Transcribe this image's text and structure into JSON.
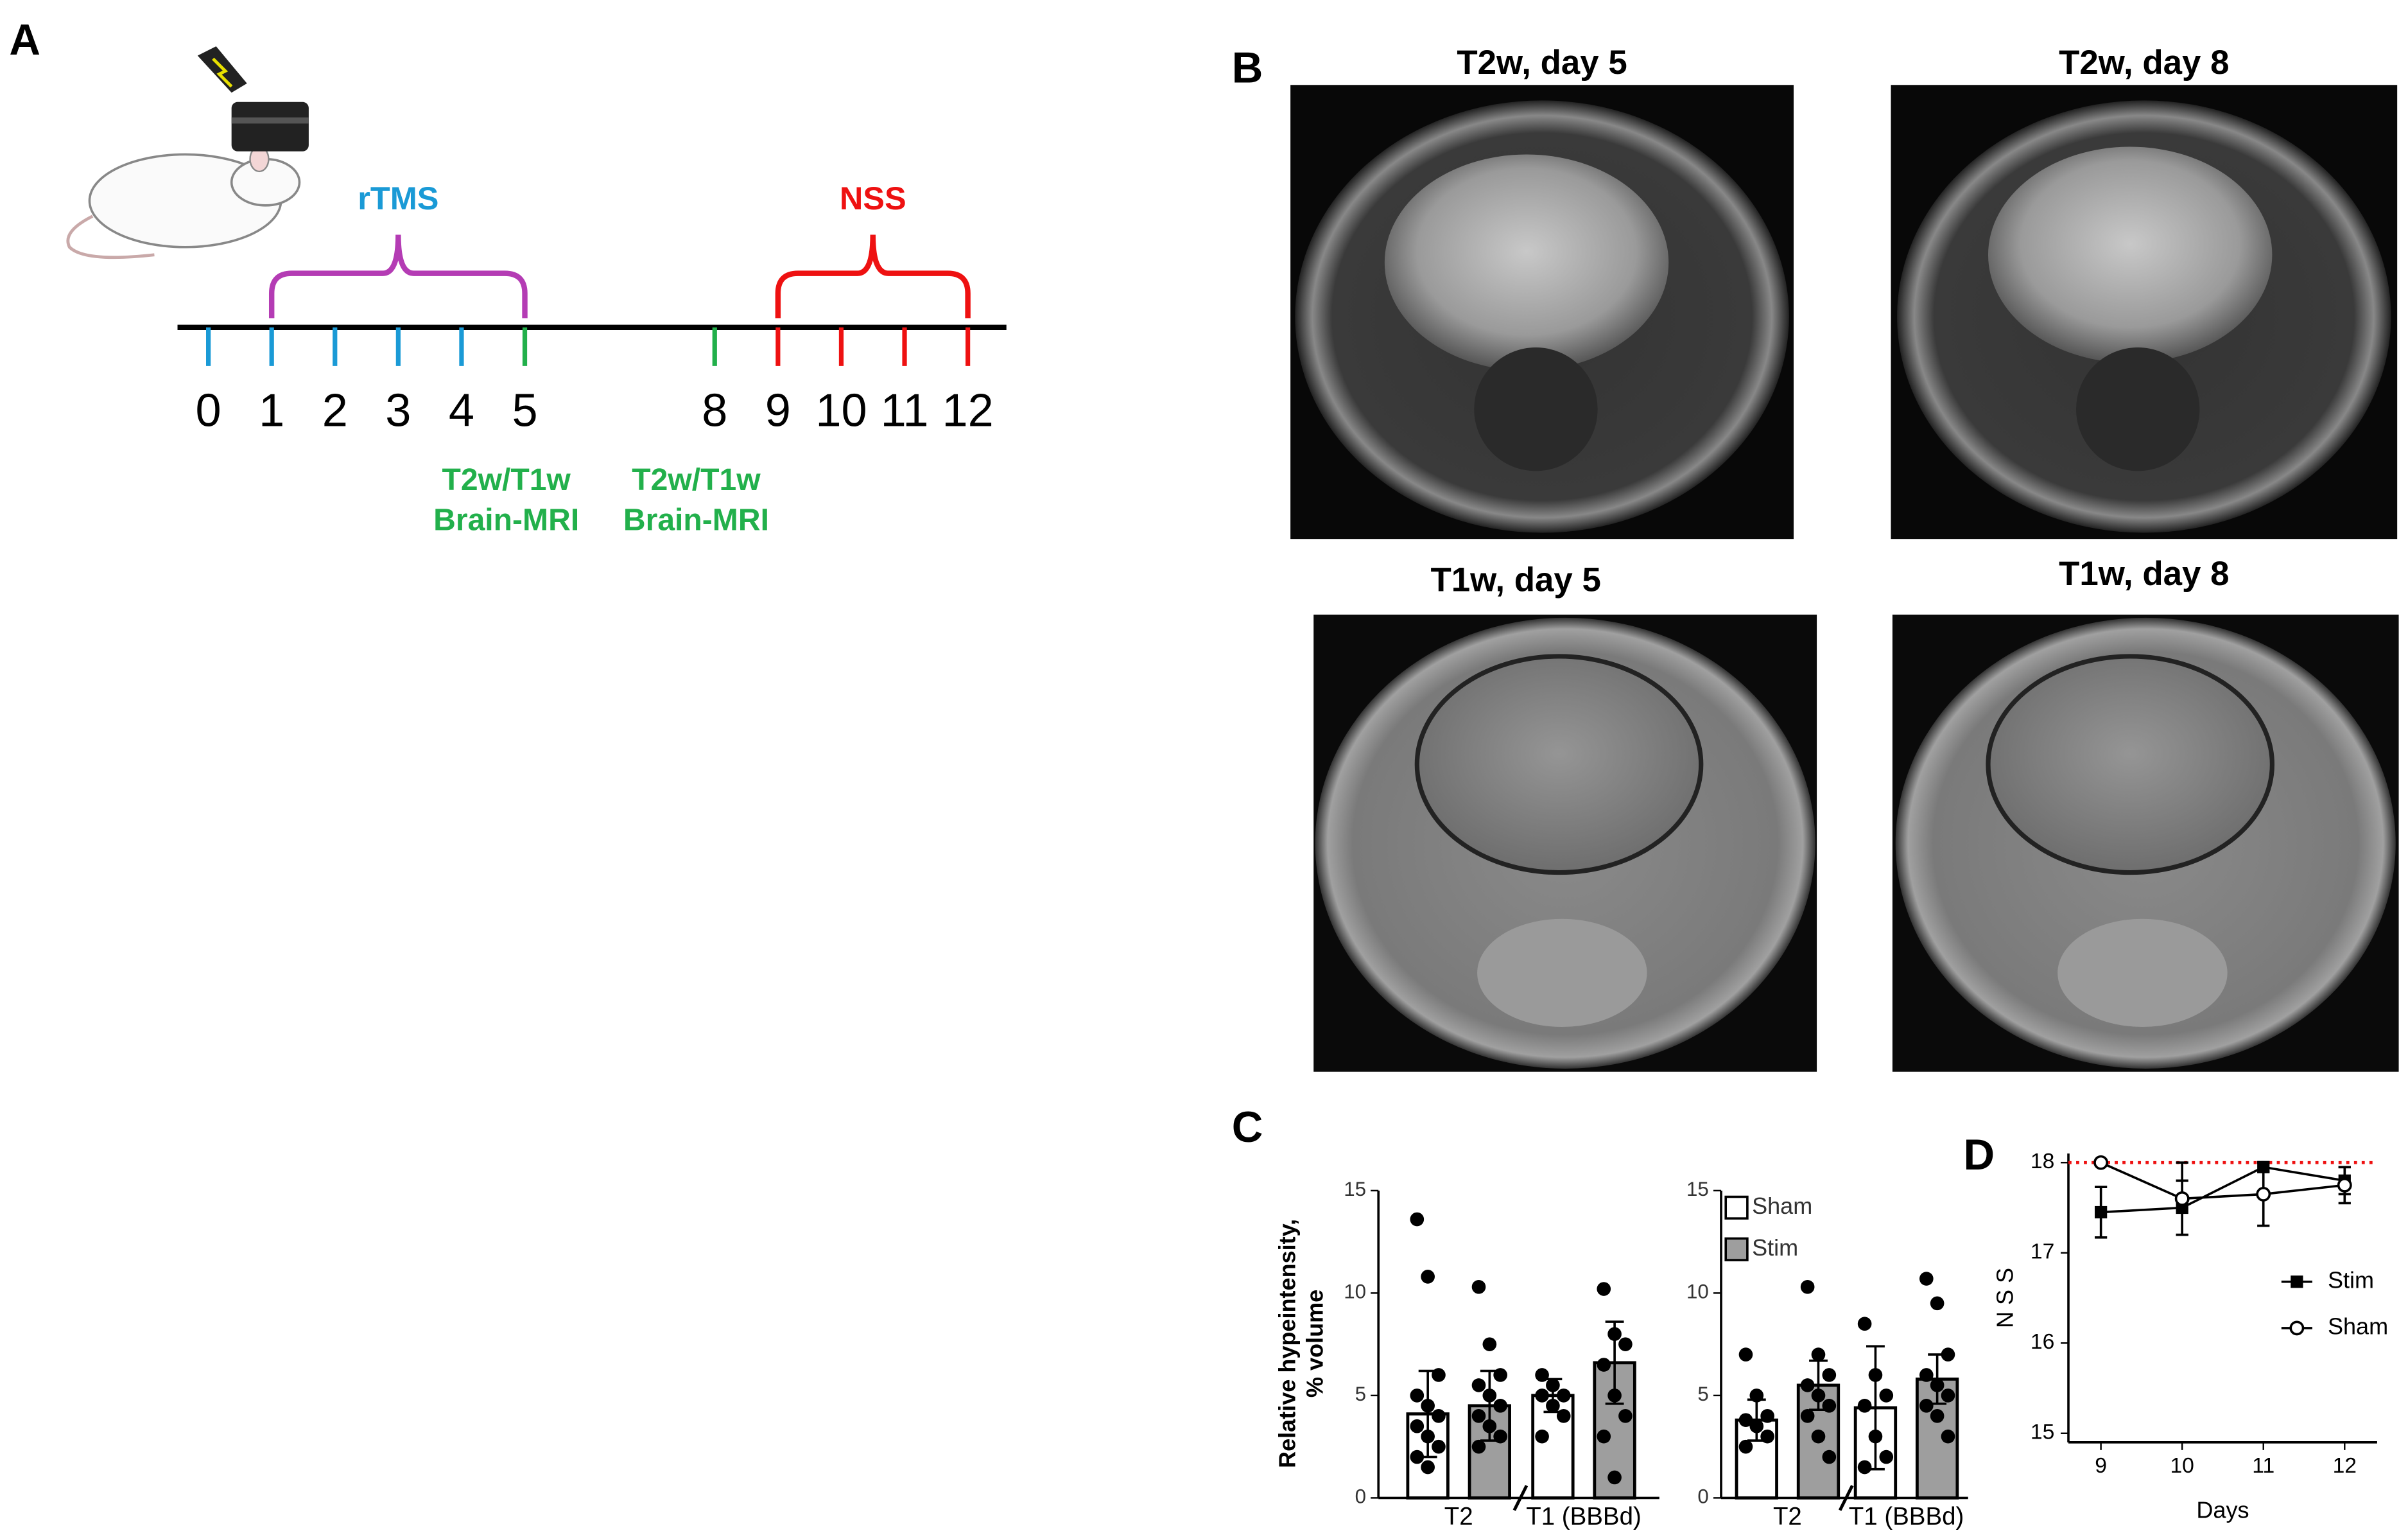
{
  "panels": {
    "a": "A",
    "b": "B",
    "c": "C",
    "d": "D"
  },
  "timeline": {
    "days": [
      0,
      1,
      2,
      3,
      4,
      5,
      8,
      9,
      10,
      11,
      12
    ],
    "day_colors": [
      "#1a9ad6",
      "#1a9ad6",
      "#1a9ad6",
      "#1a9ad6",
      "#1a9ad6",
      "#22b04b",
      "#22b04b",
      "#ee1111",
      "#ee1111",
      "#ee1111",
      "#ee1111"
    ],
    "brackets": [
      {
        "label": "rTMS",
        "label_color": "#1a9ad6",
        "color": "#b43cb4",
        "from": 1,
        "to": 5
      },
      {
        "label": "NSS",
        "label_color": "#ee1111",
        "color": "#ee1111",
        "from": 9,
        "to": 12
      }
    ],
    "mri_labels": [
      {
        "day": 5,
        "lines": [
          "T2w/T1w",
          "Brain-MRI"
        ],
        "color": "#22b04b"
      },
      {
        "day": 8,
        "lines": [
          "T2w/T1w",
          "Brain-MRI"
        ],
        "color": "#22b04b"
      }
    ]
  },
  "mri": {
    "images": [
      {
        "title": "T2w, day 5"
      },
      {
        "title": "T2w, day 8"
      },
      {
        "title": "T1w, day 5"
      },
      {
        "title": "T1w, day 8"
      }
    ]
  },
  "chart_data": [
    {
      "type": "bar",
      "ylabel": [
        "Relative hypeintensity,",
        "% volume"
      ],
      "categories": [
        "T2",
        "T1 (BBBd)"
      ],
      "ylim": [
        0,
        15
      ],
      "yticks": [
        0,
        5,
        10,
        15
      ],
      "legend": false,
      "series": [
        {
          "color": "#ffffff",
          "values": [
            4.1,
            5.0
          ],
          "errors": [
            2.1,
            0.8
          ],
          "points": [
            [
              13.6,
              10.8,
              6.0,
              5.0,
              4.5,
              4.0,
              3.5,
              3.0,
              2.5,
              2.0,
              1.5
            ],
            [
              6.0,
              5.5,
              5.0,
              5.0,
              4.5,
              4.0,
              3.0
            ]
          ]
        },
        {
          "color": "#9e9e9e",
          "values": [
            4.5,
            6.6
          ],
          "errors": [
            1.7,
            2.0
          ],
          "points": [
            [
              10.3,
              7.5,
              6.0,
              5.5,
              5.0,
              4.5,
              4.0,
              3.5,
              3.0,
              2.5
            ],
            [
              10.2,
              8.0,
              7.5,
              6.5,
              5.0,
              4.0,
              3.0,
              1.0
            ]
          ]
        }
      ]
    },
    {
      "type": "bar",
      "categories": [
        "T2",
        "T1 (BBBd)"
      ],
      "ylim": [
        0,
        15
      ],
      "yticks": [
        0,
        5,
        10,
        15
      ],
      "legend": true,
      "series": [
        {
          "name": "Sham",
          "color": "#ffffff",
          "values": [
            3.8,
            4.4
          ],
          "errors": [
            1.0,
            3.0
          ],
          "points": [
            [
              7.0,
              5.0,
              4.0,
              3.8,
              3.5,
              3.0,
              2.5
            ],
            [
              8.5,
              6.0,
              5.0,
              4.5,
              3.0,
              2.0,
              1.5
            ]
          ]
        },
        {
          "name": "Stim",
          "color": "#9e9e9e",
          "values": [
            5.5,
            5.8
          ],
          "errors": [
            1.2,
            1.2
          ],
          "points": [
            [
              10.3,
              7.0,
              6.0,
              5.5,
              5.0,
              4.5,
              4.0,
              3.0,
              2.0
            ],
            [
              10.7,
              9.5,
              7.0,
              6.0,
              5.5,
              5.0,
              4.5,
              4.0,
              3.0
            ]
          ]
        }
      ]
    },
    {
      "type": "line",
      "ylabel": "N S S",
      "xlabel": "Days",
      "x": [
        9,
        10,
        11,
        12
      ],
      "xlim": [
        8.6,
        12.4
      ],
      "xticks": [
        9,
        10,
        11,
        12
      ],
      "ylim": [
        14.9,
        18.1
      ],
      "yticks": [
        15,
        16,
        17,
        18
      ],
      "reference_line": {
        "value": 18,
        "color": "#ee1111"
      },
      "legend": true,
      "series": [
        {
          "name": "Stim",
          "color": "#000000",
          "marker": "square",
          "values": [
            17.45,
            17.5,
            17.95,
            17.8
          ],
          "errors": [
            0.28,
            0.3,
            0.05,
            0.15
          ]
        },
        {
          "name": "Sham",
          "color": "#000000",
          "marker": "circle-open",
          "values": [
            18.0,
            17.6,
            17.65,
            17.75
          ],
          "errors": [
            0.0,
            0.4,
            0.35,
            0.2
          ]
        }
      ]
    }
  ]
}
